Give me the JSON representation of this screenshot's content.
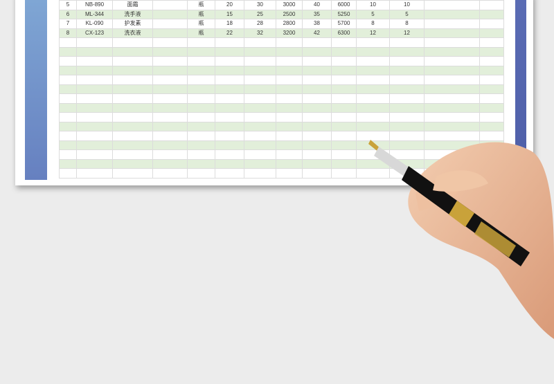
{
  "table": {
    "rows": [
      [
        "5",
        "NB-890",
        "面霜",
        "",
        "瓶",
        "20",
        "30",
        "3000",
        "40",
        "6000",
        "10",
        "10",
        "",
        ""
      ],
      [
        "6",
        "ML-344",
        "洗手液",
        "",
        "瓶",
        "15",
        "25",
        "2500",
        "35",
        "5250",
        "5",
        "5",
        "",
        ""
      ],
      [
        "7",
        "KL-090",
        "护发素",
        "",
        "瓶",
        "18",
        "28",
        "2800",
        "38",
        "5700",
        "8",
        "8",
        "",
        ""
      ],
      [
        "8",
        "CX-123",
        "洗衣液",
        "",
        "瓶",
        "22",
        "32",
        "3200",
        "42",
        "6300",
        "12",
        "12",
        "",
        ""
      ]
    ],
    "empty_rows": 15
  },
  "colors": {
    "row_alt": "#e2efda",
    "band": "#6680c0"
  }
}
